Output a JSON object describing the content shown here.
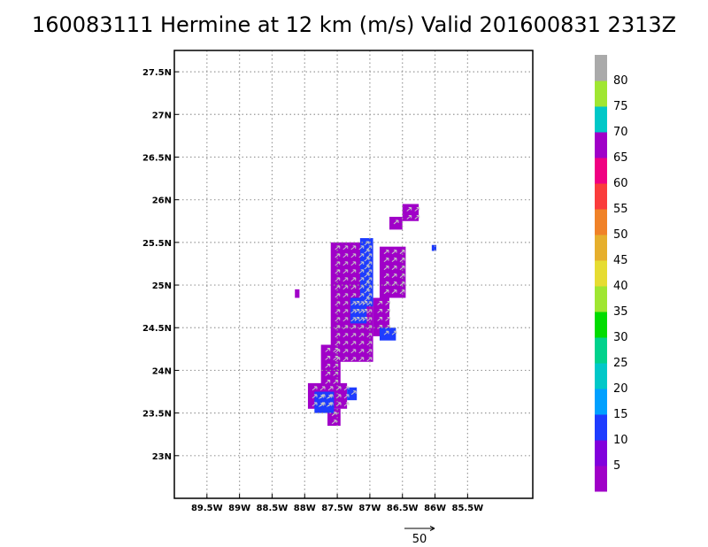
{
  "title": "160083111 Hermine at 12 km (m/s) Valid 201600831 2313Z",
  "chart_data": {
    "type": "heatmap",
    "title": "160083111 Hermine at 12 km (m/s) Valid 201600831 2313Z",
    "xlabel": "",
    "ylabel": "",
    "xlim": [
      -90.0,
      -84.5
    ],
    "ylim": [
      22.5,
      27.75
    ],
    "grid": true,
    "x_ticks": [
      {
        "value": -89.5,
        "label": "89.5W"
      },
      {
        "value": -89.0,
        "label": "89W"
      },
      {
        "value": -88.5,
        "label": "88.5W"
      },
      {
        "value": -88.0,
        "label": "88W"
      },
      {
        "value": -87.5,
        "label": "87.5W"
      },
      {
        "value": -87.0,
        "label": "87W"
      },
      {
        "value": -86.5,
        "label": "86.5W"
      },
      {
        "value": -86.0,
        "label": "86W"
      },
      {
        "value": -85.5,
        "label": "85.5W"
      }
    ],
    "y_ticks": [
      {
        "value": 23.0,
        "label": "23N"
      },
      {
        "value": 23.5,
        "label": "23.5N"
      },
      {
        "value": 24.0,
        "label": "24N"
      },
      {
        "value": 24.5,
        "label": "24.5N"
      },
      {
        "value": 25.0,
        "label": "25N"
      },
      {
        "value": 25.5,
        "label": "25.5N"
      },
      {
        "value": 26.0,
        "label": "26N"
      },
      {
        "value": 26.5,
        "label": "26.5N"
      },
      {
        "value": 27.0,
        "label": "27N"
      },
      {
        "value": 27.5,
        "label": "27.5N"
      }
    ],
    "colorbar": {
      "labels": [
        "5",
        "10",
        "15",
        "20",
        "25",
        "30",
        "35",
        "40",
        "45",
        "50",
        "55",
        "60",
        "65",
        "70",
        "75",
        "80"
      ],
      "colors": [
        "#a000c8",
        "#8200dc",
        "#1e3cff",
        "#00a0ff",
        "#00c8c8",
        "#00d28c",
        "#00dc00",
        "#a0e632",
        "#e6dc32",
        "#e6af2d",
        "#f08228",
        "#fa3c3c",
        "#f00082",
        "#a000c8",
        "#00c8c8",
        "#a0e632",
        "#aaaaaa"
      ]
    },
    "reference_vector": {
      "label": "50",
      "value": 50
    },
    "wind_regions": [
      {
        "speed": "5",
        "color": "#a000c8",
        "lon": [
          -87.6,
          -86.95
        ],
        "lat": [
          24.1,
          25.5
        ]
      },
      {
        "speed": "5",
        "color": "#a000c8",
        "lon": [
          -86.85,
          -86.45
        ],
        "lat": [
          24.85,
          25.45
        ]
      },
      {
        "speed": "5",
        "color": "#a000c8",
        "lon": [
          -86.95,
          -86.7
        ],
        "lat": [
          24.4,
          24.85
        ]
      },
      {
        "speed": "5",
        "color": "#a000c8",
        "lon": [
          -86.5,
          -86.25
        ],
        "lat": [
          25.75,
          25.95
        ]
      },
      {
        "speed": "5",
        "color": "#a000c8",
        "lon": [
          -86.7,
          -86.5
        ],
        "lat": [
          25.65,
          25.8
        ]
      },
      {
        "speed": "5",
        "color": "#a000c8",
        "lon": [
          -87.75,
          -87.45
        ],
        "lat": [
          23.8,
          24.3
        ]
      },
      {
        "speed": "5",
        "color": "#a000c8",
        "lon": [
          -87.95,
          -87.35
        ],
        "lat": [
          23.55,
          23.85
        ]
      },
      {
        "speed": "5",
        "color": "#a000c8",
        "lon": [
          -87.65,
          -87.45
        ],
        "lat": [
          23.35,
          23.55
        ]
      },
      {
        "speed": "5",
        "color": "#a000c8",
        "lon": [
          -88.15,
          -88.08
        ],
        "lat": [
          24.85,
          24.95
        ]
      },
      {
        "speed": "10",
        "color": "#1e3cff",
        "lon": [
          -87.15,
          -86.95
        ],
        "lat": [
          24.75,
          25.55
        ]
      },
      {
        "speed": "10",
        "color": "#1e3cff",
        "lon": [
          -87.3,
          -87.05
        ],
        "lat": [
          24.55,
          24.85
        ]
      },
      {
        "speed": "10",
        "color": "#1e3cff",
        "lon": [
          -86.85,
          -86.6
        ],
        "lat": [
          24.35,
          24.5
        ]
      },
      {
        "speed": "10",
        "color": "#1e3cff",
        "lon": [
          -87.85,
          -87.55
        ],
        "lat": [
          23.5,
          23.75
        ]
      },
      {
        "speed": "10",
        "color": "#1e3cff",
        "lon": [
          -87.35,
          -87.2
        ],
        "lat": [
          23.65,
          23.8
        ]
      },
      {
        "speed": "10",
        "color": "#1e3cff",
        "lon": [
          -86.05,
          -85.98
        ],
        "lat": [
          25.4,
          25.47
        ]
      }
    ]
  }
}
